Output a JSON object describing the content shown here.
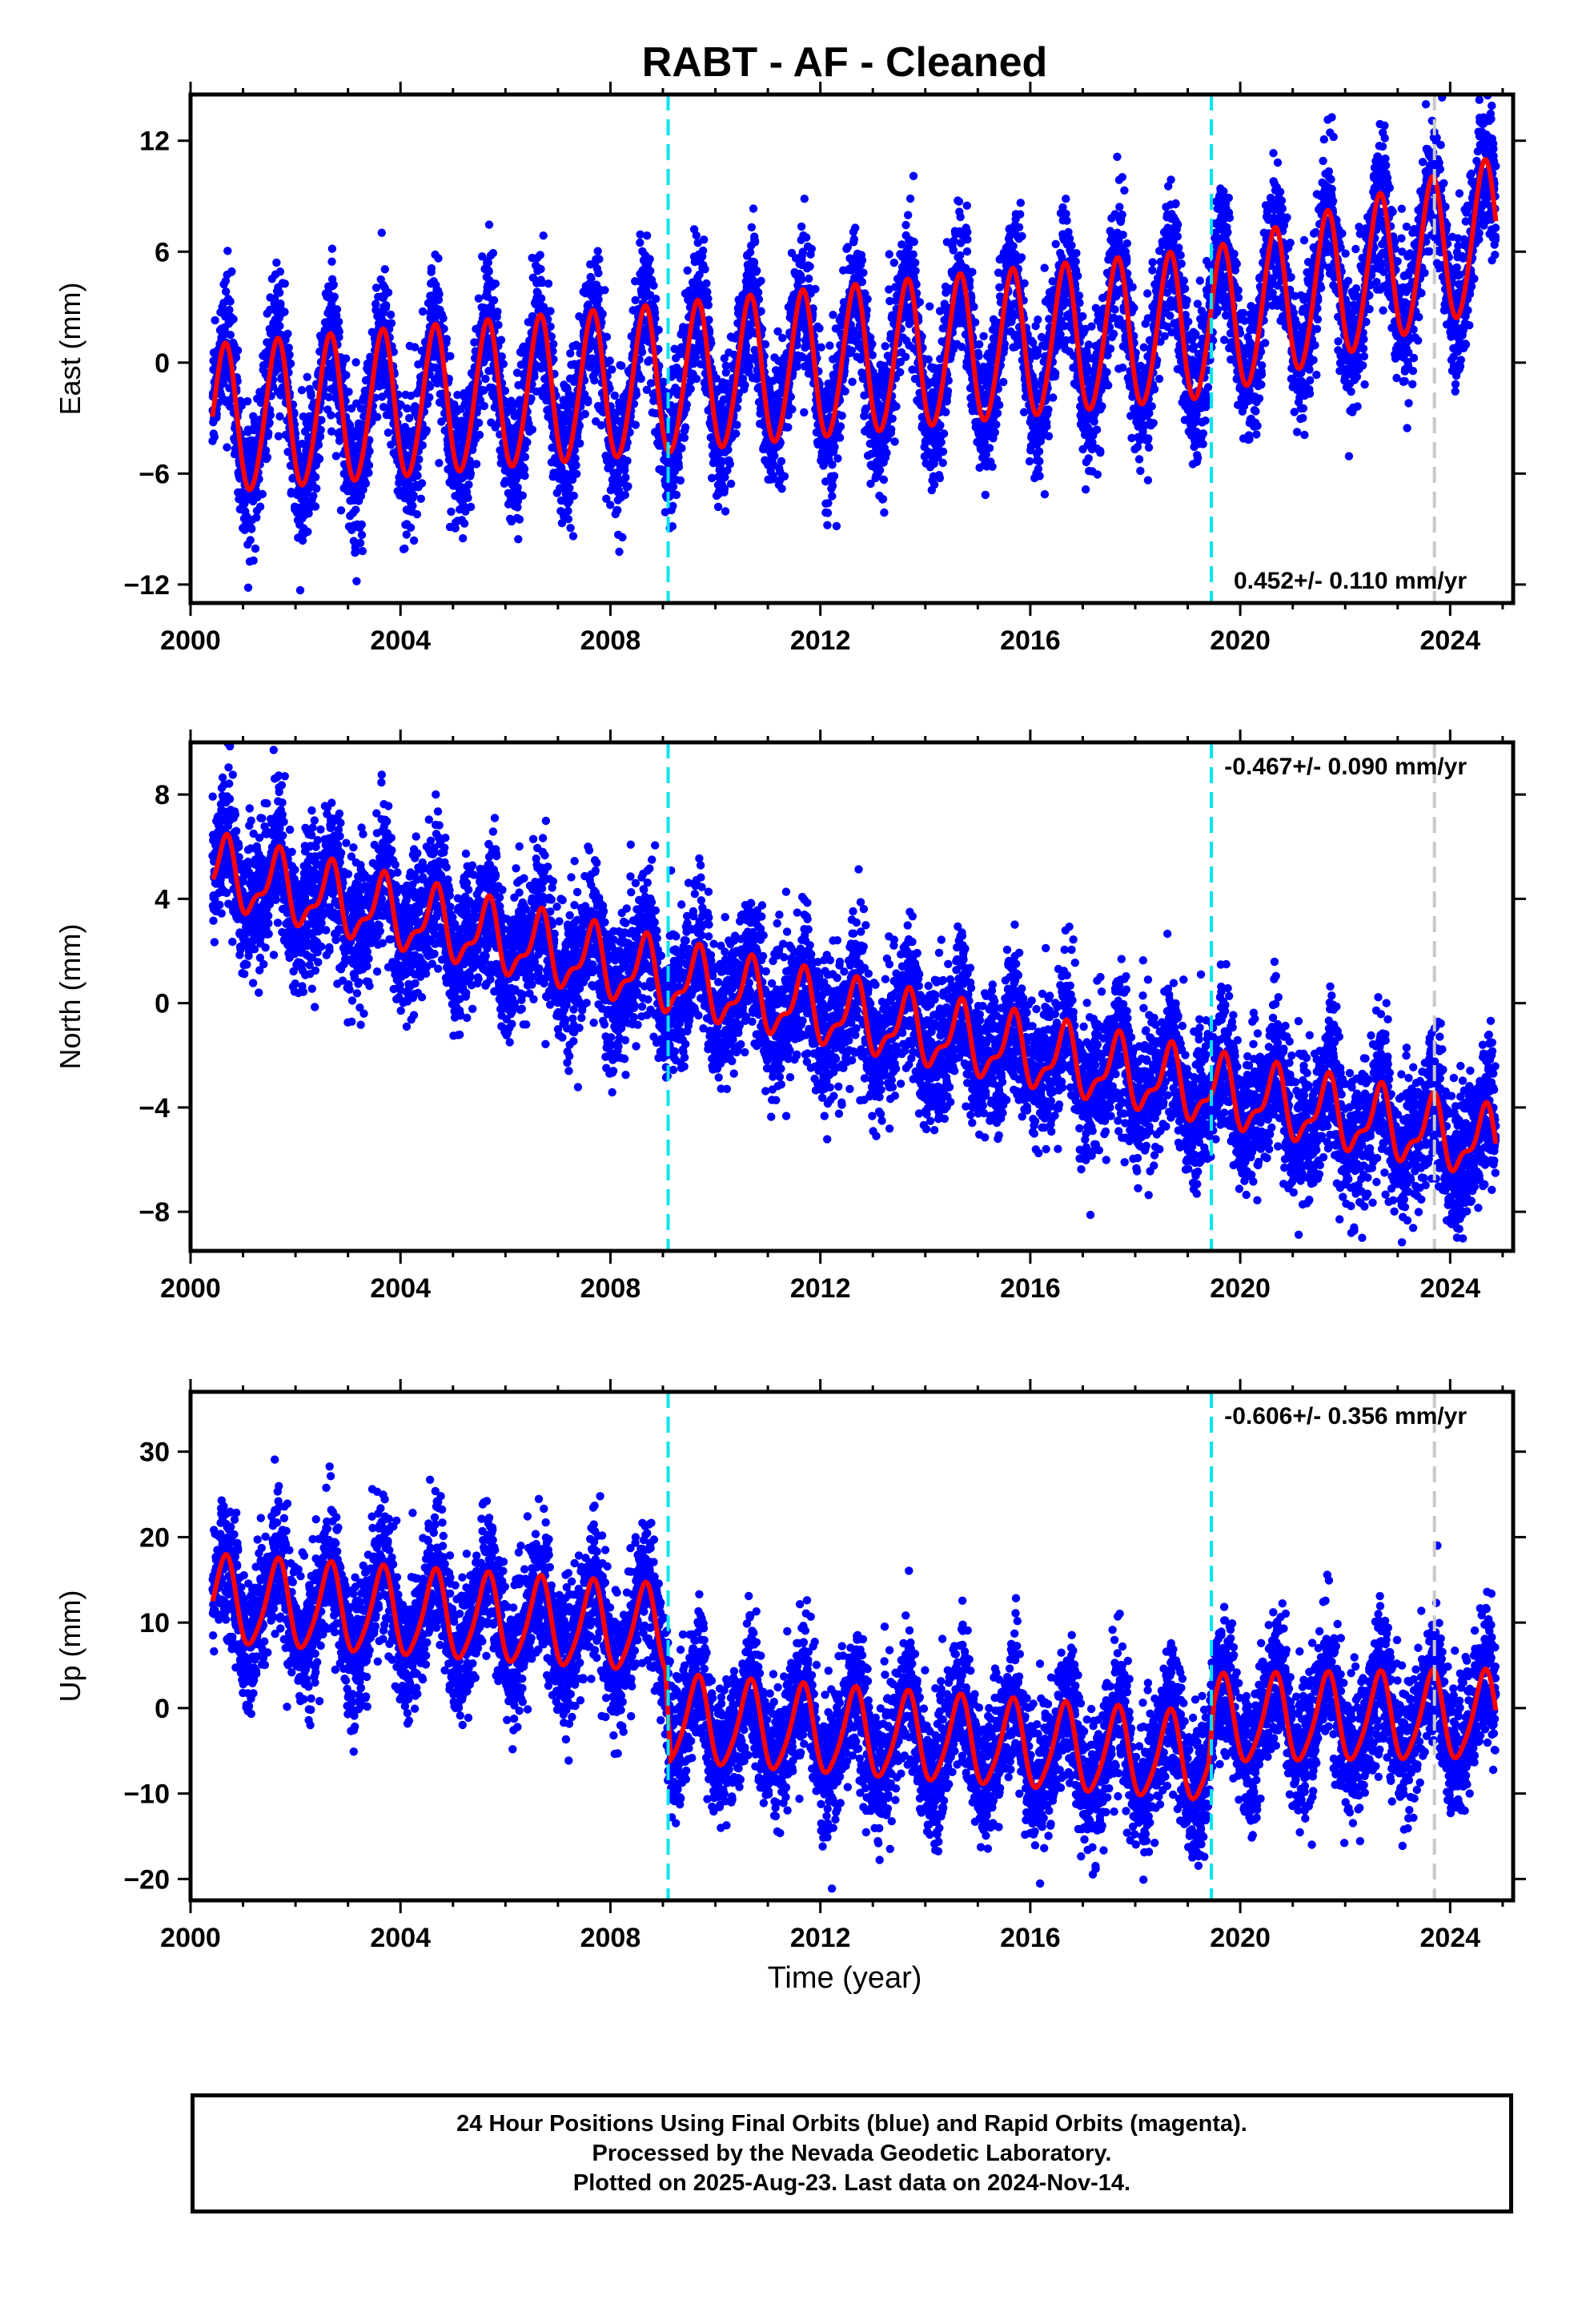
{
  "title": "RABT  - AF - Cleaned",
  "x_axis": {
    "label": "Time (year)",
    "range": [
      2000,
      2025.2
    ],
    "ticks": [
      2000,
      2004,
      2008,
      2012,
      2016,
      2020,
      2024
    ]
  },
  "colors": {
    "data_points": "#0000ff",
    "model_fit": "#ff0000",
    "equipment_change": "#00e5ee",
    "other_event": "#c8c8c8"
  },
  "event_lines": {
    "equipment_change": [
      2009.1,
      2019.45
    ],
    "other_event": [
      2023.7
    ]
  },
  "chart_data": [
    {
      "type": "scatter",
      "component": "east",
      "ylabel": "East (mm)",
      "ylim": [
        -13,
        14.5
      ],
      "yticks": [
        12,
        6,
        0,
        -6,
        -12
      ],
      "rate_label": "0.452+/- 0.110 mm/yr",
      "rate_position": "bottom-right",
      "trend": [
        {
          "x": 2000.4,
          "y": -3.2
        },
        {
          "x": 2009.1,
          "y": -1.0
        },
        {
          "x": 2019.45,
          "y": 2.0
        },
        {
          "x": 2024.9,
          "y": 7.0
        }
      ],
      "annual_amplitude": 4.0,
      "semiannual_amplitude": 0.3,
      "noise_sd": 1.5,
      "series": [
        {
          "values": []
        }
      ]
    },
    {
      "type": "scatter",
      "component": "north",
      "ylabel": "North (mm)",
      "ylim": [
        -9.5,
        10
      ],
      "yticks": [
        8,
        4,
        0,
        -4,
        -8
      ],
      "rate_label": "-0.467+/- 0.090 mm/yr",
      "rate_position": "top-right",
      "trend": [
        {
          "x": 2000.4,
          "y": 5.0
        },
        {
          "x": 2009.1,
          "y": 0.9
        },
        {
          "x": 2019.45,
          "y": -3.4
        },
        {
          "x": 2024.9,
          "y": -5.5
        }
      ],
      "annual_amplitude": 1.2,
      "semiannual_amplitude": 0.5,
      "noise_sd": 1.1,
      "series": [
        {
          "values": []
        }
      ]
    },
    {
      "type": "scatter",
      "component": "up",
      "ylabel": "Up (mm)",
      "ylim": [
        -22.5,
        37
      ],
      "yticks": [
        30,
        20,
        10,
        0,
        -10,
        -20
      ],
      "rate_label": "-0.606+/- 0.356 mm/yr",
      "rate_position": "top-right",
      "trend": [
        {
          "x": 2000.4,
          "y": 12.5
        },
        {
          "x": 2009.05,
          "y": 9.0
        },
        {
          "x": 2009.15,
          "y": -1.5
        },
        {
          "x": 2019.4,
          "y": -6.0
        },
        {
          "x": 2019.5,
          "y": -1.5
        },
        {
          "x": 2024.9,
          "y": -1.0
        }
      ],
      "annual_amplitude": 5.0,
      "semiannual_amplitude": 0.8,
      "noise_sd": 3.2,
      "series": [
        {
          "values": []
        }
      ]
    }
  ],
  "footer": {
    "line1": "24 Hour Positions Using Final Orbits (blue) and Rapid Orbits (magenta).",
    "line2": "Processed by the Nevada Geodetic Laboratory.",
    "line3": "Plotted on 2025-Aug-23. Last data on 2024-Nov-14."
  }
}
